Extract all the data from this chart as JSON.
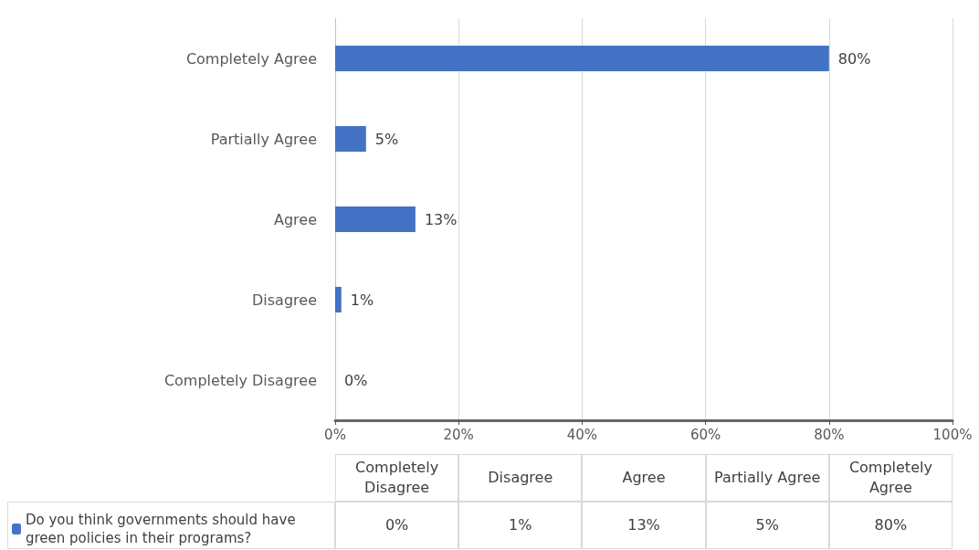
{
  "chart_data": {
    "type": "bar",
    "orientation": "horizontal",
    "categories": [
      "Completely Agree",
      "Partially Agree",
      "Agree",
      "Disagree",
      "Completely Disagree"
    ],
    "series": [
      {
        "name": "Do you think governments should have green policies in their programs?",
        "color": "#4472c4",
        "values": [
          80,
          5,
          13,
          1,
          0
        ],
        "value_labels": [
          "80%",
          "5%",
          "13%",
          "1%",
          "0%"
        ]
      }
    ],
    "xlim": [
      0,
      100
    ],
    "xticks": [
      {
        "value": 0,
        "label": "0%"
      },
      {
        "value": 20,
        "label": "20%"
      },
      {
        "value": 40,
        "label": "40%"
      },
      {
        "value": 60,
        "label": "60%"
      },
      {
        "value": 80,
        "label": "80%"
      },
      {
        "value": 100,
        "label": "100%"
      }
    ],
    "grid": "x",
    "legend": "bottom"
  }
}
